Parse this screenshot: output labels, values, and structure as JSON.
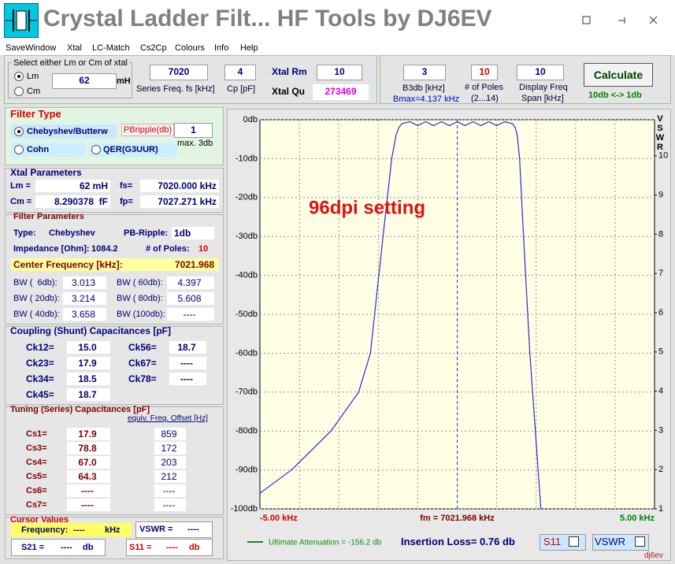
{
  "window": {
    "title": "Crystal Ladder Filt... HF Tools by DJ6EV"
  },
  "menu": [
    "SaveWindow",
    "Xtal",
    "LC-Match",
    "Cs2Cp",
    "Colours",
    "Info",
    "Help"
  ],
  "xtal_input": {
    "group_label": "Select either Lm or Cm of xtal",
    "options": [
      "Lm",
      "Cm"
    ],
    "motional_value": "62",
    "motional_unit": "mH",
    "series_freq": {
      "value": "7020",
      "label": "Series Freq. fs [kHz]"
    },
    "cp": {
      "value": "4",
      "label": "Cp [pF]"
    },
    "rm": {
      "label": "Xtal Rm",
      "value": "10"
    },
    "qu": {
      "label": "Xtal Qu",
      "value": "273469"
    }
  },
  "filter_input": {
    "b3db": {
      "value": "3",
      "label": "B3db [kHz]",
      "note": "Bmax=4.137 kHz"
    },
    "poles": {
      "value": "10",
      "label": "# of Poles",
      "range": "(2...14)"
    },
    "span": {
      "value": "10",
      "label": [
        "Display Freq",
        "Span [kHz]"
      ]
    },
    "button": "Calculate",
    "toggle": "10db <-> 1db"
  },
  "filter_type": {
    "title": "Filter Type",
    "options": [
      "Chebyshev/Butterw",
      "Cohn",
      "QER(G3UUR)"
    ],
    "ripple_label": "PBripple(db)",
    "ripple_value": "1",
    "ripple_note": "max. 3db"
  },
  "xtal_parameters": {
    "title": "Xtal Parameters",
    "rows": [
      [
        "Lm =",
        "62 mH",
        "fs=",
        "7020.000 kHz"
      ],
      [
        "Cm =",
        "8.290378  fF",
        "fp=",
        "7027.271 kHz"
      ]
    ]
  },
  "filter_parameters": {
    "title": "Filter Parameters",
    "type_label": "Type:",
    "type_value": "Chebyshev",
    "ripple_label": "PB-Ripple:",
    "ripple_value": "1db",
    "impedance_label": "Impedance [Ohm]:",
    "impedance_value": "1084.2",
    "poles_label": "# of Poles:",
    "poles_value": "10",
    "center_label": "Center Frequency [kHz]:",
    "center_value": "7021.968",
    "bw": [
      [
        "BW (  6db):",
        "3.013",
        "BW ( 60db):",
        "4.397"
      ],
      [
        "BW ( 20db):",
        "3.214",
        "BW ( 80db):",
        "5.608"
      ],
      [
        "BW ( 40db):",
        "3.658",
        "BW (100db):",
        "----"
      ]
    ]
  },
  "coupling": {
    "title": "Coupling (Shunt) Capacitances [pF]",
    "rows": [
      [
        "Ck12=",
        "15.0",
        "Ck56=",
        "18.7"
      ],
      [
        "Ck23=",
        "17.9",
        "Ck67=",
        "----"
      ],
      [
        "Ck34=",
        "18.5",
        "Ck78=",
        "----"
      ],
      [
        "Ck45=",
        "18.7"
      ]
    ]
  },
  "tuning": {
    "title": "Tuning (Series) Capacitances [pF]",
    "offset_header": "equiv. Freq. Offset [Hz]",
    "rows": [
      [
        "Cs1=",
        "17.9",
        "859"
      ],
      [
        "Cs3=",
        "78.8",
        "172"
      ],
      [
        "Cs4=",
        "67.0",
        "203"
      ],
      [
        "Cs5=",
        "64.3",
        "212"
      ],
      [
        "Cs6=",
        "----",
        "----"
      ],
      [
        "Cs7=",
        "----",
        "----"
      ]
    ]
  },
  "cursor": {
    "title": "Cursor Values",
    "freq_label": "Frequency:",
    "freq_value": "----",
    "freq_unit": "kHz",
    "vswr_label": "VSWR =",
    "vswr_value": "----",
    "s21_label": "S21 =",
    "s21_value": "----",
    "s21_unit": "db",
    "s11_label": "S11 =",
    "s11_value": "----",
    "s11_unit": "db"
  },
  "chart_data": {
    "type": "line",
    "annotation": "96dpi setting",
    "x": [
      -5,
      -4.2,
      -3.2,
      -2.5,
      -2.2,
      -1.88,
      -1.66,
      -1.55,
      -1.48,
      -1.4,
      -1.2,
      -1.0,
      -0.8,
      -0.6,
      -0.4,
      -0.2,
      0,
      0.2,
      0.4,
      0.6,
      0.8,
      1.0,
      1.2,
      1.4,
      1.47,
      1.52,
      1.58,
      1.68,
      1.84,
      1.98,
      2.12
    ],
    "series": [
      {
        "color": "#2a2ad0",
        "values": [
          -96,
          -90,
          -80,
          -70,
          -60,
          -30,
          -10,
          -4,
          -2,
          -1,
          -0.5,
          -1.5,
          -0.5,
          -1.5,
          -0.5,
          -1.5,
          -0.5,
          -1.5,
          -0.5,
          -1.5,
          -0.5,
          -1.5,
          -0.5,
          -1,
          -2,
          -4,
          -10,
          -30,
          -60,
          -80,
          -100
        ]
      }
    ],
    "xlim": [
      -5,
      5
    ],
    "ylim": [
      -100,
      0
    ],
    "xticks": [
      {
        "value": -5,
        "label": "-5.00 kHz"
      },
      {
        "value": 0,
        "label": "fm = 7021.968 kHz"
      },
      {
        "value": 5,
        "label": "5.00 kHz"
      }
    ],
    "xgrid": [
      -4,
      -3,
      -2,
      -1,
      1,
      2,
      3,
      4
    ],
    "yticks": [
      {
        "value": 0,
        "label": "0db"
      },
      {
        "value": -10,
        "label": "-10db"
      },
      {
        "value": -20,
        "label": "-20db"
      },
      {
        "value": -30,
        "label": "-30db"
      },
      {
        "value": -40,
        "label": "-40db"
      },
      {
        "value": -50,
        "label": "-50db"
      },
      {
        "value": -60,
        "label": "-60db"
      },
      {
        "value": -70,
        "label": "-70db"
      },
      {
        "value": -80,
        "label": "-80db"
      },
      {
        "value": -90,
        "label": "-90db"
      },
      {
        "value": -100,
        "label": "-100db"
      }
    ],
    "y2label": "VSWR",
    "y2lim": [
      1,
      10.92
    ],
    "y2ticks": [
      1,
      2,
      3,
      4,
      5,
      6,
      7,
      8,
      9,
      10
    ],
    "grid": true,
    "legend_text": "Ultimate Attenuation = -156.2 db",
    "legend_color": "#1a8a1a",
    "insertion_loss": "Insertion Loss= 0.76 db",
    "checkboxes": [
      "S11",
      "VSWR"
    ],
    "credit": "dj6ev"
  }
}
